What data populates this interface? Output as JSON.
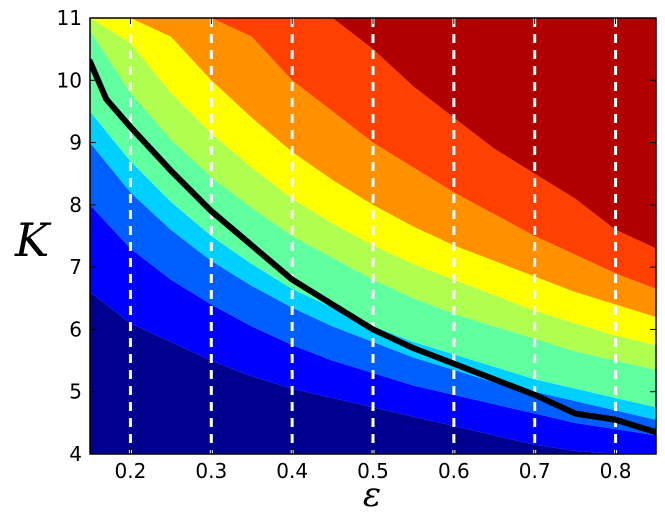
{
  "chart_data": {
    "type": "contour",
    "xlabel": "ε",
    "ylabel": "K",
    "xlim": [
      0.15,
      0.85
    ],
    "ylim": [
      4,
      11
    ],
    "x_ticks": [
      "0.2",
      "0.3",
      "0.4",
      "0.5",
      "0.6",
      "0.7",
      "0.8"
    ],
    "y_ticks": [
      "4",
      "5",
      "6",
      "7",
      "8",
      "9",
      "10",
      "11"
    ],
    "dashed_lines_x": [
      0.2,
      0.3,
      0.4,
      0.5,
      0.6,
      0.7,
      0.8
    ],
    "dashed_line_color": "#ffffff",
    "critical_curve_color": "#000000",
    "grid": false,
    "band_colors": [
      "#00008f",
      "#0000ff",
      "#0060ff",
      "#00d0ff",
      "#60ffa0",
      "#b0ff50",
      "#ffff00",
      "#ff9000",
      "#ff4000",
      "#b00000"
    ],
    "boundaries": [
      {
        "x": [
          0.15,
          0.2,
          0.25,
          0.3,
          0.35,
          0.4,
          0.45,
          0.5,
          0.55,
          0.6,
          0.65,
          0.7,
          0.75,
          0.8,
          0.85
        ],
        "y": [
          6.6,
          6.1,
          5.8,
          5.5,
          5.25,
          5.05,
          4.9,
          4.75,
          4.6,
          4.45,
          4.3,
          4.15,
          4.05,
          4.0,
          4.0
        ]
      },
      {
        "x": [
          0.15,
          0.2,
          0.25,
          0.3,
          0.35,
          0.4,
          0.45,
          0.5,
          0.55,
          0.6,
          0.65,
          0.7,
          0.75,
          0.8,
          0.85
        ],
        "y": [
          8.0,
          7.3,
          6.8,
          6.4,
          6.05,
          5.75,
          5.5,
          5.3,
          5.1,
          4.95,
          4.8,
          4.65,
          4.5,
          4.4,
          4.3
        ]
      },
      {
        "x": [
          0.15,
          0.2,
          0.25,
          0.3,
          0.35,
          0.4,
          0.45,
          0.5,
          0.55,
          0.6,
          0.65,
          0.7,
          0.75,
          0.8,
          0.85
        ],
        "y": [
          9.0,
          8.2,
          7.6,
          7.1,
          6.7,
          6.35,
          6.05,
          5.8,
          5.55,
          5.35,
          5.15,
          5.0,
          4.85,
          4.7,
          4.55
        ]
      },
      {
        "x": [
          0.15,
          0.2,
          0.25,
          0.3,
          0.35,
          0.4,
          0.45,
          0.5,
          0.55,
          0.6,
          0.65,
          0.7,
          0.75,
          0.8,
          0.85
        ],
        "y": [
          9.5,
          8.7,
          8.05,
          7.5,
          7.05,
          6.65,
          6.35,
          6.05,
          5.8,
          5.6,
          5.4,
          5.2,
          5.05,
          4.9,
          4.75
        ]
      },
      {
        "x": [
          0.15,
          0.2,
          0.25,
          0.3,
          0.35,
          0.4,
          0.45,
          0.5,
          0.55,
          0.6,
          0.65,
          0.7,
          0.75,
          0.8,
          0.85
        ],
        "y": [
          10.8,
          9.8,
          9.05,
          8.45,
          7.95,
          7.5,
          7.15,
          6.8,
          6.5,
          6.25,
          6.05,
          5.85,
          5.65,
          5.5,
          5.35
        ]
      },
      {
        "x": [
          0.15,
          0.2,
          0.25,
          0.3,
          0.35,
          0.4,
          0.45,
          0.5,
          0.55,
          0.6,
          0.65,
          0.7,
          0.75,
          0.8,
          0.85
        ],
        "y": [
          11.0,
          10.6,
          9.8,
          9.15,
          8.6,
          8.1,
          7.7,
          7.35,
          7.05,
          6.8,
          6.55,
          6.3,
          6.1,
          5.9,
          5.75
        ]
      },
      {
        "x": [
          0.15,
          0.2,
          0.25,
          0.3,
          0.35,
          0.4,
          0.45,
          0.5,
          0.55,
          0.6,
          0.65,
          0.7,
          0.75,
          0.8,
          0.85
        ],
        "y": [
          11.0,
          11.0,
          10.7,
          10.0,
          9.4,
          8.85,
          8.4,
          8.0,
          7.65,
          7.35,
          7.1,
          6.85,
          6.6,
          6.4,
          6.2
        ]
      },
      {
        "x": [
          0.15,
          0.2,
          0.25,
          0.3,
          0.35,
          0.4,
          0.45,
          0.5,
          0.55,
          0.6,
          0.65,
          0.7,
          0.75,
          0.8,
          0.85
        ],
        "y": [
          11.0,
          11.0,
          11.0,
          11.0,
          10.7,
          10.0,
          9.5,
          9.0,
          8.6,
          8.2,
          7.85,
          7.5,
          7.2,
          6.9,
          6.65
        ]
      },
      {
        "x": [
          0.15,
          0.2,
          0.25,
          0.3,
          0.35,
          0.4,
          0.45,
          0.5,
          0.55,
          0.6,
          0.65,
          0.7,
          0.75,
          0.8,
          0.85
        ],
        "y": [
          11.0,
          11.0,
          11.0,
          11.0,
          11.0,
          11.0,
          11.0,
          10.5,
          9.9,
          9.4,
          8.9,
          8.5,
          8.1,
          7.6,
          7.3
        ]
      }
    ],
    "critical_curve": {
      "x": [
        0.15,
        0.17,
        0.2,
        0.25,
        0.3,
        0.35,
        0.4,
        0.45,
        0.5,
        0.55,
        0.6,
        0.65,
        0.7,
        0.75,
        0.8,
        0.85
      ],
      "y": [
        10.3,
        9.7,
        9.25,
        8.55,
        7.9,
        7.35,
        6.8,
        6.4,
        6.0,
        5.7,
        5.45,
        5.2,
        4.95,
        4.65,
        4.55,
        4.35
      ]
    }
  }
}
